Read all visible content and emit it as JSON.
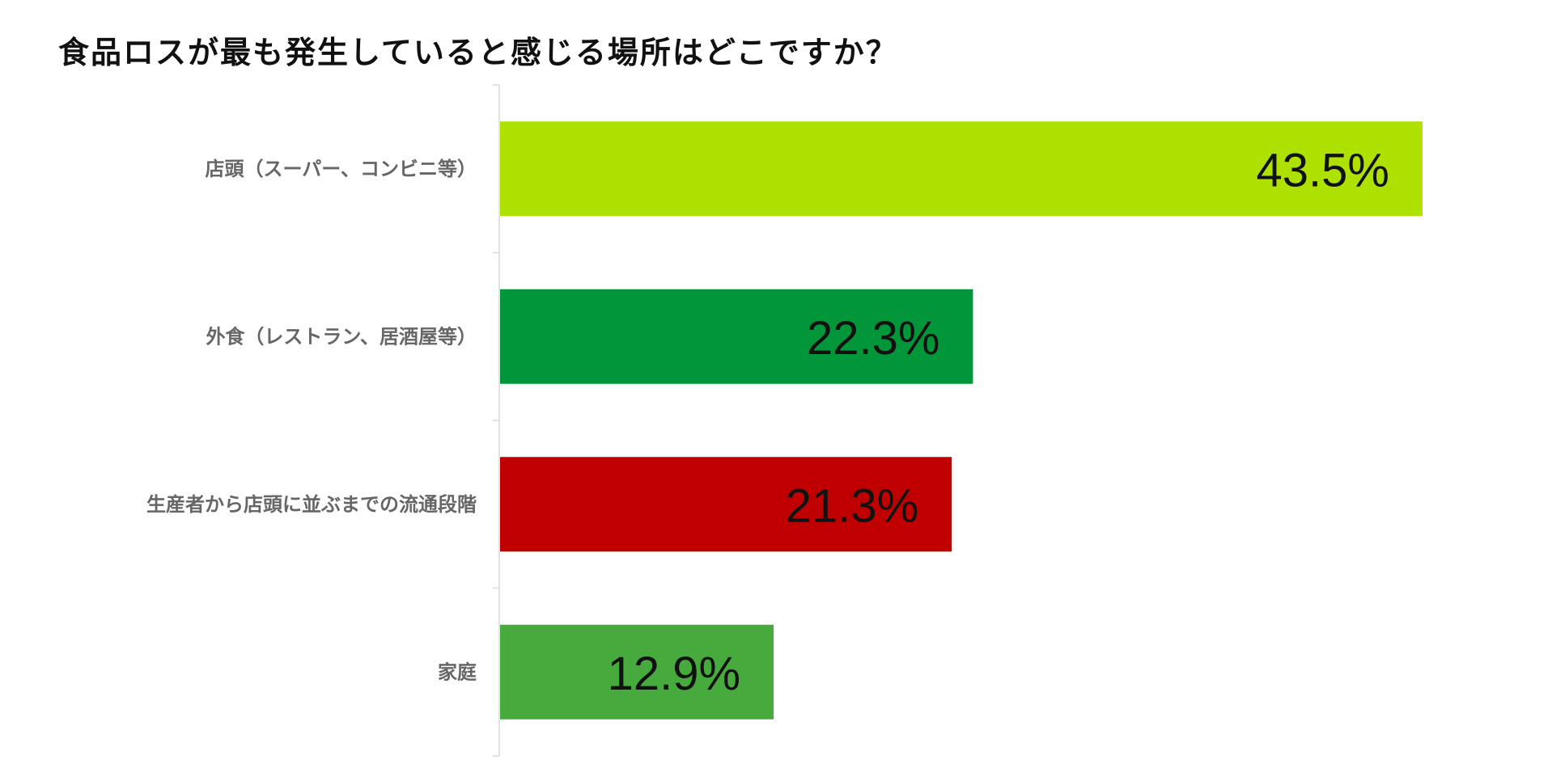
{
  "chart_data": {
    "type": "bar",
    "orientation": "horizontal",
    "title": "食品ロスが最も発生していると感じる場所はどこですか？",
    "categories": [
      "店頭（スーパー、コンビニ等）",
      "外食（レストラン、居酒屋等）",
      "生産者から店頭に並ぶまでの流通段階",
      "家庭"
    ],
    "values": [
      43.5,
      22.3,
      21.3,
      12.9
    ],
    "value_labels": [
      "43.5%",
      "22.3%",
      "21.3%",
      "12.9%"
    ],
    "unit": "%",
    "bar_colors": [
      "#aee000",
      "#009639",
      "#c00000",
      "#46ab3c"
    ],
    "xlim": [
      0,
      50
    ],
    "grid": false,
    "legend": "none"
  }
}
